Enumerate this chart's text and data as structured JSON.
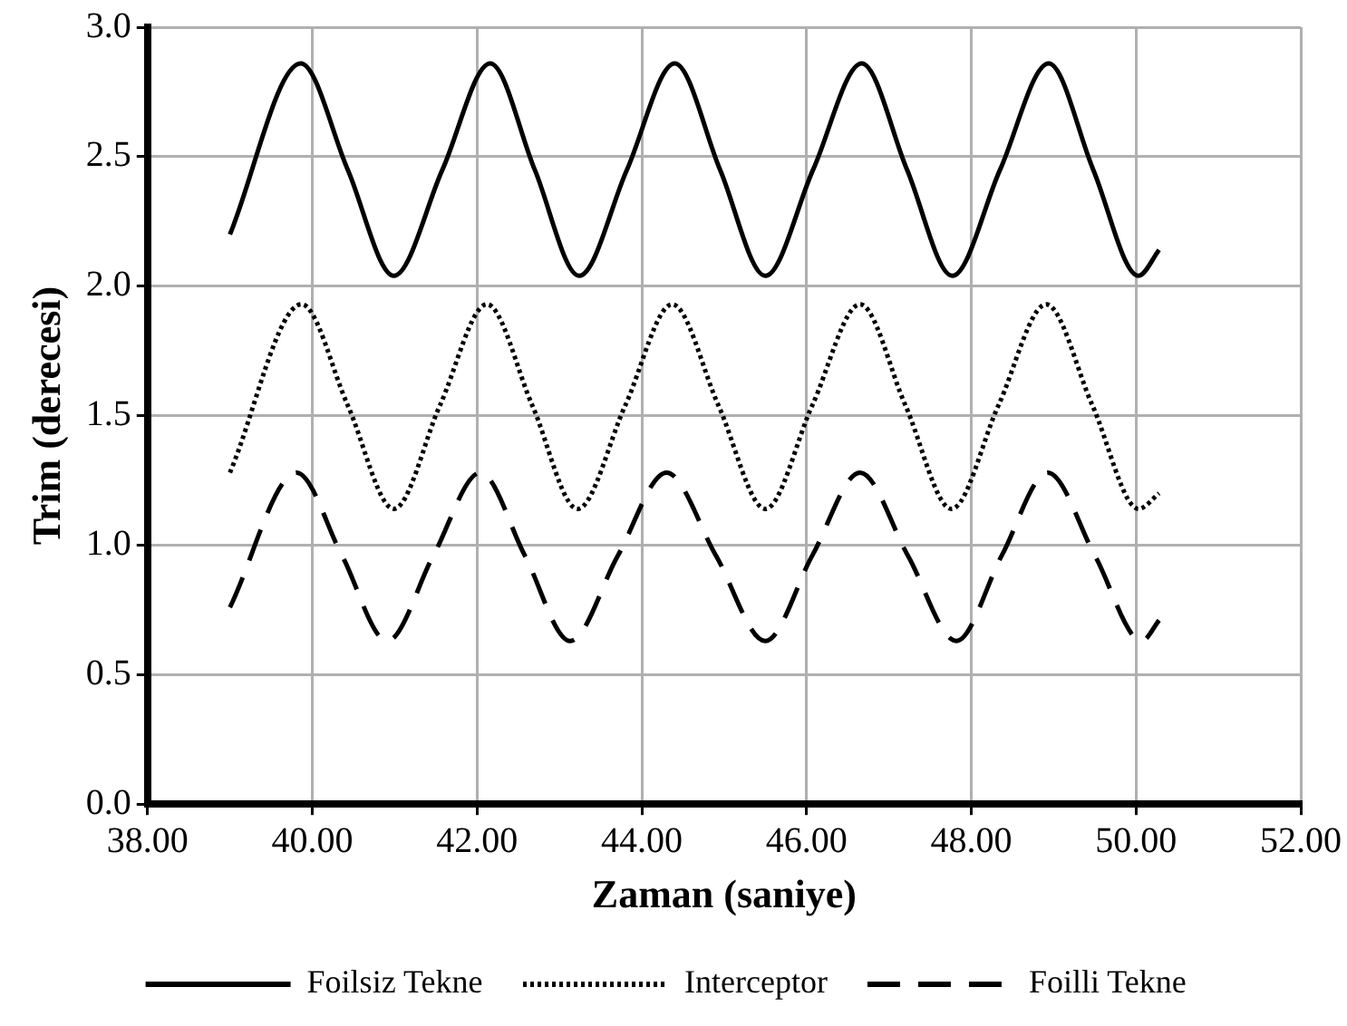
{
  "chart_data": {
    "type": "line",
    "xlabel": "Zaman (saniye)",
    "ylabel": "Trim (derecesi)",
    "xlim": [
      38,
      52
    ],
    "xticks": [
      {
        "value": 38,
        "label": "38.00"
      },
      {
        "value": 40,
        "label": "40.00"
      },
      {
        "value": 42,
        "label": "42.00"
      },
      {
        "value": 44,
        "label": "44.00"
      },
      {
        "value": 46,
        "label": "46.00"
      },
      {
        "value": 48,
        "label": "48.00"
      },
      {
        "value": 50,
        "label": "50.00"
      },
      {
        "value": 52,
        "label": "52.00"
      }
    ],
    "ylim": [
      0,
      3
    ],
    "yticks": [
      {
        "value": 0,
        "label": "0.0"
      },
      {
        "value": 0.5,
        "label": "0.5"
      },
      {
        "value": 1,
        "label": "1.0"
      },
      {
        "value": 1.5,
        "label": "1.5"
      },
      {
        "value": 2,
        "label": "2.0"
      },
      {
        "value": 2.5,
        "label": "2.5"
      },
      {
        "value": 3,
        "label": "3.0"
      }
    ],
    "grid": true,
    "legend": "bottom",
    "marker": "none",
    "series": [
      {
        "name": "Foilsiz Tekne",
        "color": "#000000",
        "line_style": "solid",
        "x": [
          39.0,
          39.86,
          40.43,
          40.99,
          41.58,
          42.16,
          42.7,
          43.24,
          43.82,
          44.4,
          44.95,
          45.5,
          46.08,
          46.67,
          47.22,
          47.77,
          48.35,
          48.94,
          49.48,
          50.03,
          50.28
        ],
        "values": [
          2.2,
          2.86,
          2.45,
          2.04,
          2.45,
          2.86,
          2.45,
          2.04,
          2.45,
          2.86,
          2.45,
          2.04,
          2.45,
          2.86,
          2.45,
          2.04,
          2.45,
          2.86,
          2.45,
          2.04,
          2.14
        ]
      },
      {
        "name": "Interceptor",
        "color": "#000000",
        "line_style": "dotted",
        "x": [
          39.0,
          39.87,
          40.43,
          40.99,
          41.55,
          42.12,
          42.67,
          43.22,
          43.8,
          44.37,
          44.93,
          45.5,
          46.07,
          46.65,
          47.2,
          47.76,
          48.33,
          48.91,
          49.47,
          50.03,
          50.28
        ],
        "values": [
          1.28,
          1.93,
          1.54,
          1.14,
          1.54,
          1.93,
          1.54,
          1.14,
          1.54,
          1.93,
          1.54,
          1.14,
          1.54,
          1.93,
          1.54,
          1.14,
          1.54,
          1.93,
          1.54,
          1.14,
          1.2
        ]
      },
      {
        "name": "Foilli Tekne",
        "color": "#000000",
        "line_style": "dashed",
        "x": [
          39.0,
          39.81,
          40.36,
          40.91,
          41.47,
          42.04,
          42.58,
          43.13,
          43.71,
          44.3,
          44.9,
          45.5,
          46.07,
          46.65,
          47.23,
          47.82,
          48.37,
          48.93,
          49.5,
          50.07,
          50.28
        ],
        "values": [
          0.76,
          1.28,
          0.96,
          0.63,
          0.96,
          1.28,
          0.96,
          0.63,
          0.96,
          1.28,
          0.96,
          0.63,
          0.96,
          1.28,
          0.96,
          0.63,
          0.96,
          1.28,
          0.96,
          0.63,
          0.71
        ]
      }
    ]
  }
}
